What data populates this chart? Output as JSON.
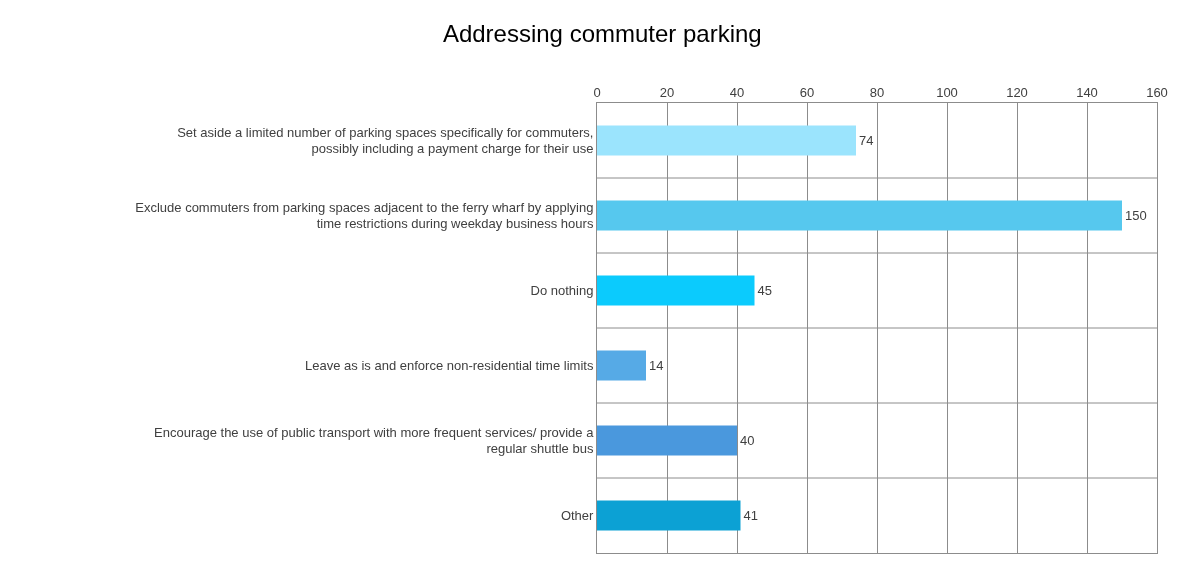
{
  "chart_data": {
    "type": "bar",
    "title": "Addressing commuter parking",
    "orientation": "horizontal",
    "categories": [
      "Set aside a limited number of parking spaces specifically for commuters, possibly including a payment charge for their use",
      "Exclude commuters from parking spaces adjacent to the ferry wharf by applying time restrictions during weekday business hours",
      "Do nothing",
      "Leave as is and enforce non-residential time limits",
      "Encourage the use of public transport with more frequent services/ provide a regular shuttle bus",
      "Other"
    ],
    "values": [
      74,
      150,
      45,
      14,
      40,
      41
    ],
    "colors": [
      "#9be4fd",
      "#56c8ee",
      "#0bcbfd",
      "#56aae6",
      "#4a98dd",
      "#0ca1d4"
    ],
    "xlim": [
      0,
      160
    ],
    "xticks": [
      0,
      20,
      40,
      60,
      80,
      100,
      120,
      140,
      160
    ],
    "grid": true,
    "data_labels": true
  }
}
